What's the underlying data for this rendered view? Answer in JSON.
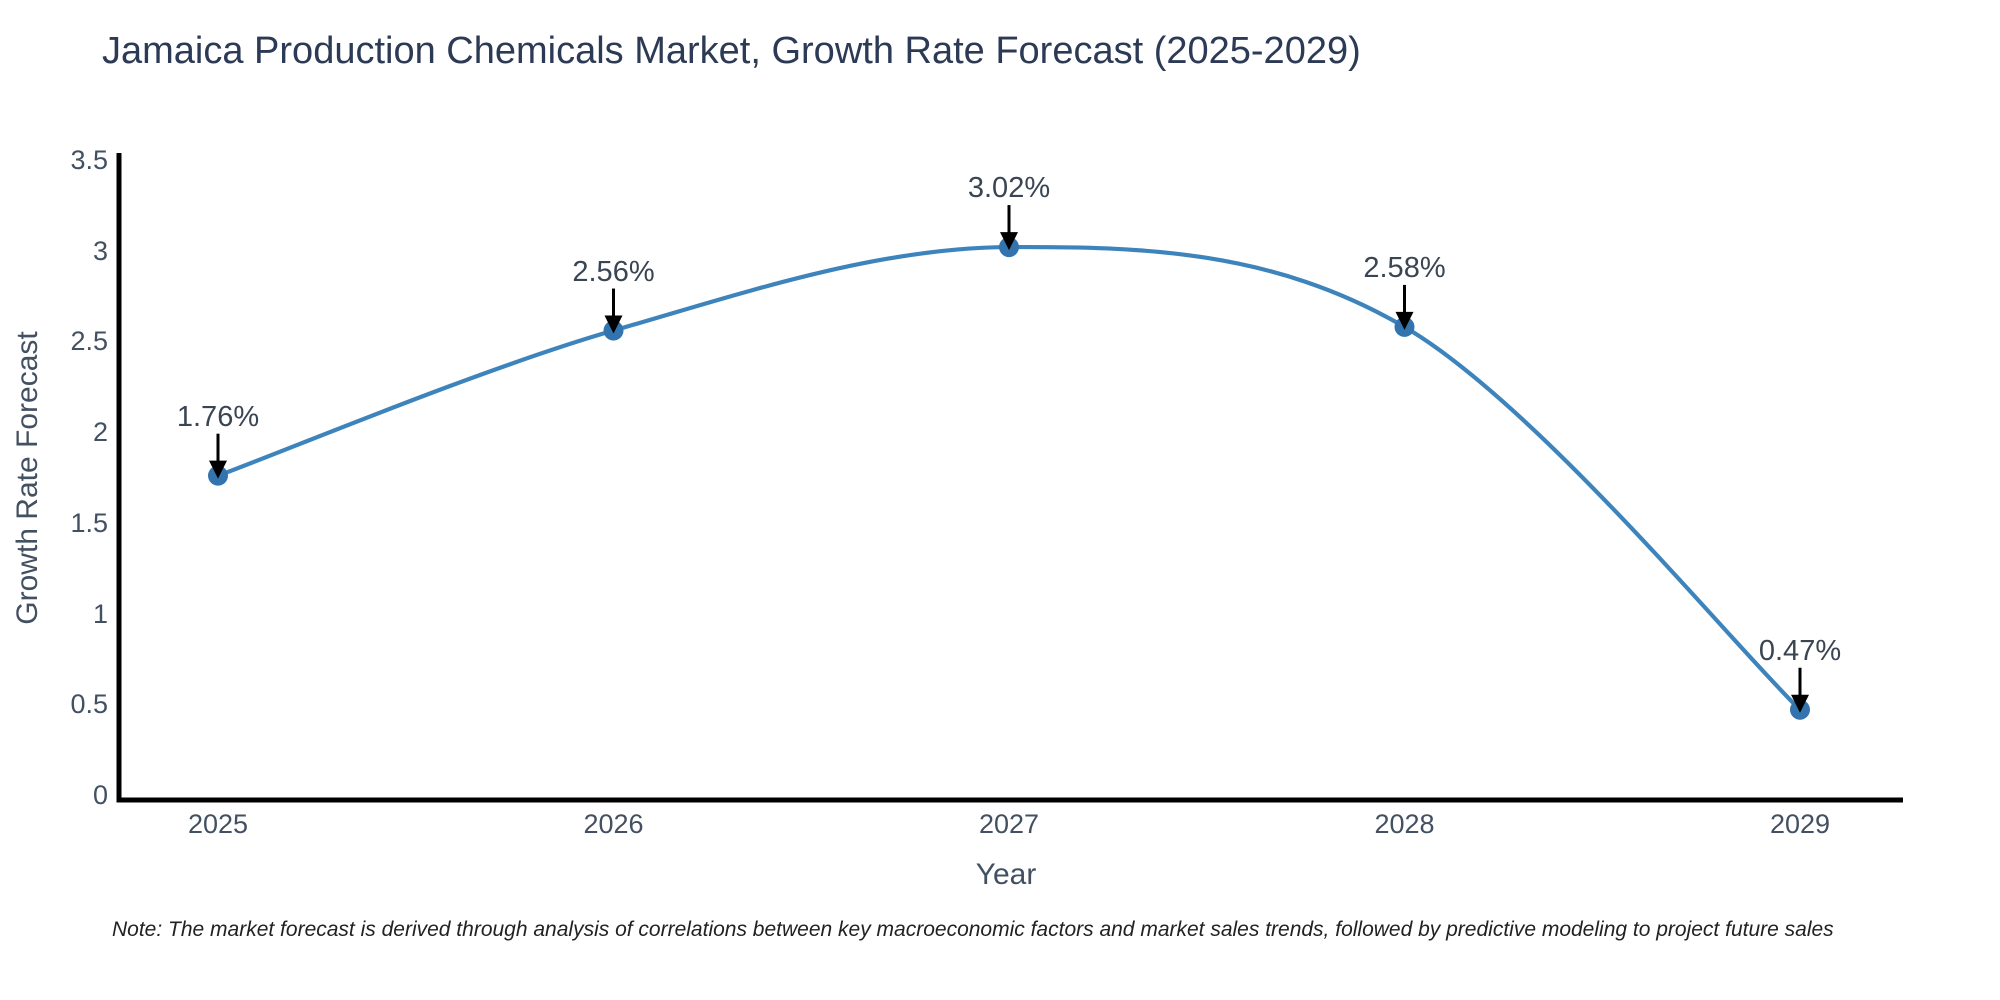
{
  "note": "Note: The market forecast is derived through analysis of correlations between key macroeconomic factors and market sales trends, followed by predictive modeling to project future sales",
  "chart_data": {
    "type": "line",
    "title": "Jamaica Production Chemicals Market, Growth Rate Forecast (2025-2029)",
    "xlabel": "Year",
    "ylabel": "Growth Rate Forecast",
    "categories": [
      "2025",
      "2026",
      "2027",
      "2028",
      "2029"
    ],
    "values": [
      1.76,
      2.56,
      3.02,
      2.58,
      0.47
    ],
    "point_labels": [
      "1.76%",
      "2.56%",
      "3.02%",
      "2.58%",
      "0.47%"
    ],
    "ylim": [
      0,
      3.5
    ],
    "yticks": [
      0,
      0.5,
      1,
      1.5,
      2,
      2.5,
      3,
      3.5
    ],
    "line_shape": "spline",
    "grid": false,
    "legend": "none",
    "annotation_style": "black-down-arrows",
    "colors": {
      "line": "#3e84bc",
      "marker": "#3474ae",
      "axis": "#000000",
      "arrow": "#000000",
      "tick_text": "#435061",
      "title_text": "#2c3a56",
      "annotation_text": "#3a4554",
      "note_text": "#222222",
      "background": "#ffffff"
    }
  }
}
